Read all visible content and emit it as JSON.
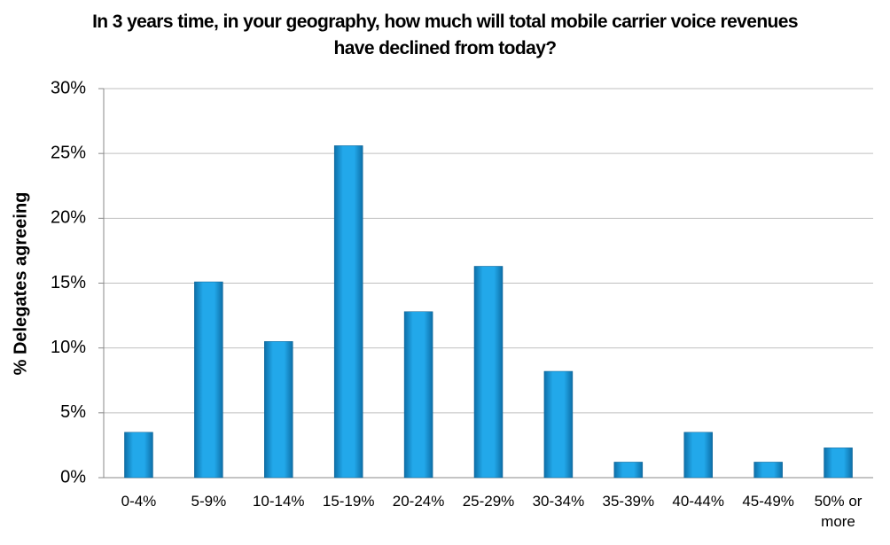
{
  "chart_data": {
    "type": "bar",
    "title": "In 3 years time, in your geography, how much will total mobile carrier voice revenues have declined from today?",
    "y_label": "% Delegates agreeing",
    "categories": [
      "0-4%",
      "5-9%",
      "10-14%",
      "15-19%",
      "20-24%",
      "25-29%",
      "30-34%",
      "35-39%",
      "40-44%",
      "45-49%",
      "50% or more"
    ],
    "values": [
      3.5,
      15.1,
      10.5,
      25.6,
      12.8,
      16.3,
      8.2,
      1.2,
      3.5,
      1.2,
      2.3
    ],
    "color": "#1a9be0",
    "ylim": [
      0,
      30
    ],
    "yticks": [
      {
        "value": 0,
        "label": "0%"
      },
      {
        "value": 5,
        "label": "5%"
      },
      {
        "value": 10,
        "label": "10%"
      },
      {
        "value": 15,
        "label": "15%"
      },
      {
        "value": 20,
        "label": "20%"
      },
      {
        "value": 25,
        "label": "25%"
      },
      {
        "value": 30,
        "label": "30%"
      }
    ],
    "grid": true
  }
}
